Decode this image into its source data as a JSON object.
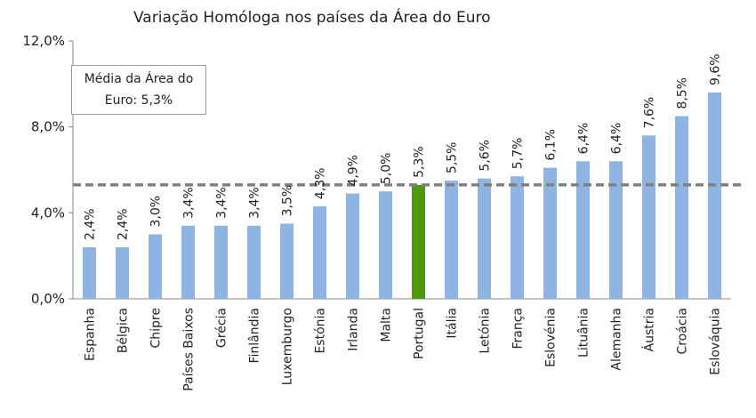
{
  "chart_data": {
    "type": "bar",
    "title": "Variação Homóloga nos países da Área do Euro",
    "categories": [
      "Espanha",
      "Bélgica",
      "Chipre",
      "Países Baixos",
      "Grécia",
      "Finlândia",
      "Luxemburgo",
      "Estónia",
      "Irlanda",
      "Malta",
      "Portugal",
      "Itália",
      "Letónia",
      "França",
      "Eslovénia",
      "Lituânia",
      "Alemanha",
      "Áustria",
      "Croácia",
      "Eslováquia"
    ],
    "values": [
      2.4,
      2.4,
      3.0,
      3.4,
      3.4,
      3.4,
      3.5,
      4.3,
      4.9,
      5.0,
      5.3,
      5.5,
      5.6,
      5.7,
      6.1,
      6.4,
      6.4,
      7.6,
      8.5,
      9.6
    ],
    "value_labels": [
      "2,4%",
      "2,4%",
      "3,0%",
      "3,4%",
      "3,4%",
      "3,4%",
      "3,5%",
      "4,3%",
      "4,9%",
      "5,0%",
      "5,3%",
      "5,5%",
      "5,6%",
      "5,7%",
      "6,1%",
      "6,4%",
      "6,4%",
      "7,6%",
      "8,5%",
      "9,6%"
    ],
    "highlight_category": "Portugal",
    "colors": {
      "bar": "#8db4e2",
      "highlight": "#4e9a06",
      "reference_line": "#7f7f7f"
    },
    "ylim": [
      0,
      12
    ],
    "yticks": [
      0,
      4,
      8,
      12
    ],
    "ytick_labels": [
      "0,0%",
      "4,0%",
      "8,0%",
      "12,0%"
    ],
    "reference_line": {
      "value": 5.3,
      "style": "dashed"
    },
    "annotation": {
      "line1": "Média da Área do",
      "line2": "Euro: 5,3%"
    },
    "xlabel": "",
    "ylabel": "",
    "grid": false
  }
}
